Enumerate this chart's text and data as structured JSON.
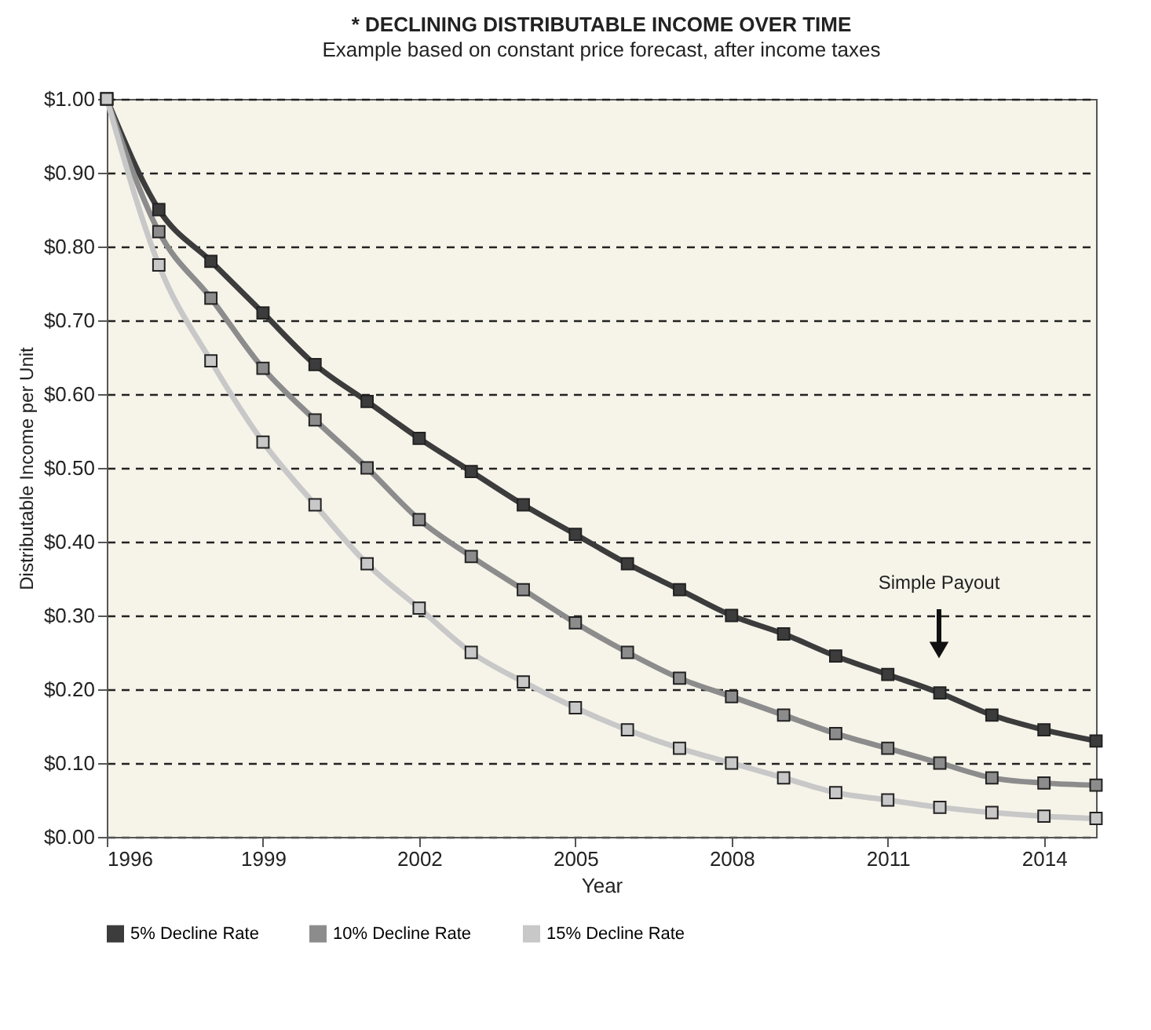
{
  "chart_data": {
    "type": "line",
    "title": "* DECLINING DISTRIBUTABLE INCOME OVER TIME",
    "subtitle": "Example based on constant price forecast, after income taxes",
    "xlabel": "Year",
    "ylabel": "Distributable Income per Unit",
    "x": [
      1996,
      1997,
      1998,
      1999,
      2000,
      2001,
      2002,
      2003,
      2004,
      2005,
      2006,
      2007,
      2008,
      2009,
      2010,
      2011,
      2012,
      2013,
      2014,
      2015
    ],
    "series": [
      {
        "name": "5% Decline Rate",
        "color": "#3c3c3c",
        "values": [
          1.0,
          0.85,
          0.78,
          0.71,
          0.64,
          0.59,
          0.54,
          0.495,
          0.45,
          0.41,
          0.37,
          0.335,
          0.3,
          0.275,
          0.245,
          0.22,
          0.195,
          0.165,
          0.145,
          0.13
        ]
      },
      {
        "name": "10% Decline Rate",
        "color": "#8c8c8c",
        "values": [
          1.0,
          0.82,
          0.73,
          0.635,
          0.565,
          0.5,
          0.43,
          0.38,
          0.335,
          0.29,
          0.25,
          0.215,
          0.19,
          0.165,
          0.14,
          0.12,
          0.1,
          0.08,
          0.073,
          0.07
        ]
      },
      {
        "name": "15% Decline Rate",
        "color": "#c8c8c8",
        "values": [
          1.0,
          0.775,
          0.645,
          0.535,
          0.45,
          0.37,
          0.31,
          0.25,
          0.21,
          0.175,
          0.145,
          0.12,
          0.1,
          0.08,
          0.06,
          0.05,
          0.04,
          0.033,
          0.028,
          0.025
        ]
      }
    ],
    "xlim": [
      1996,
      2015
    ],
    "xticks": [
      1996,
      1999,
      2002,
      2005,
      2008,
      2011,
      2014
    ],
    "ylim": [
      0,
      1
    ],
    "yticks": [
      {
        "value": 0,
        "label": "$0.00"
      },
      {
        "value": 0.1,
        "label": "$0.10"
      },
      {
        "value": 0.2,
        "label": "$0.20"
      },
      {
        "value": 0.3,
        "label": "$0.30"
      },
      {
        "value": 0.4,
        "label": "$0.40"
      },
      {
        "value": 0.5,
        "label": "$0.50"
      },
      {
        "value": 0.6,
        "label": "$0.60"
      },
      {
        "value": 0.7,
        "label": "$0.70"
      },
      {
        "value": 0.8,
        "label": "$0.80"
      },
      {
        "value": 0.9,
        "label": "$0.90"
      },
      {
        "value": 1,
        "label": "$1.00"
      }
    ],
    "grid": "y",
    "legend": "bottom",
    "marker": "square",
    "line_style": "solid",
    "annotations": [
      "Simple Payout"
    ]
  }
}
